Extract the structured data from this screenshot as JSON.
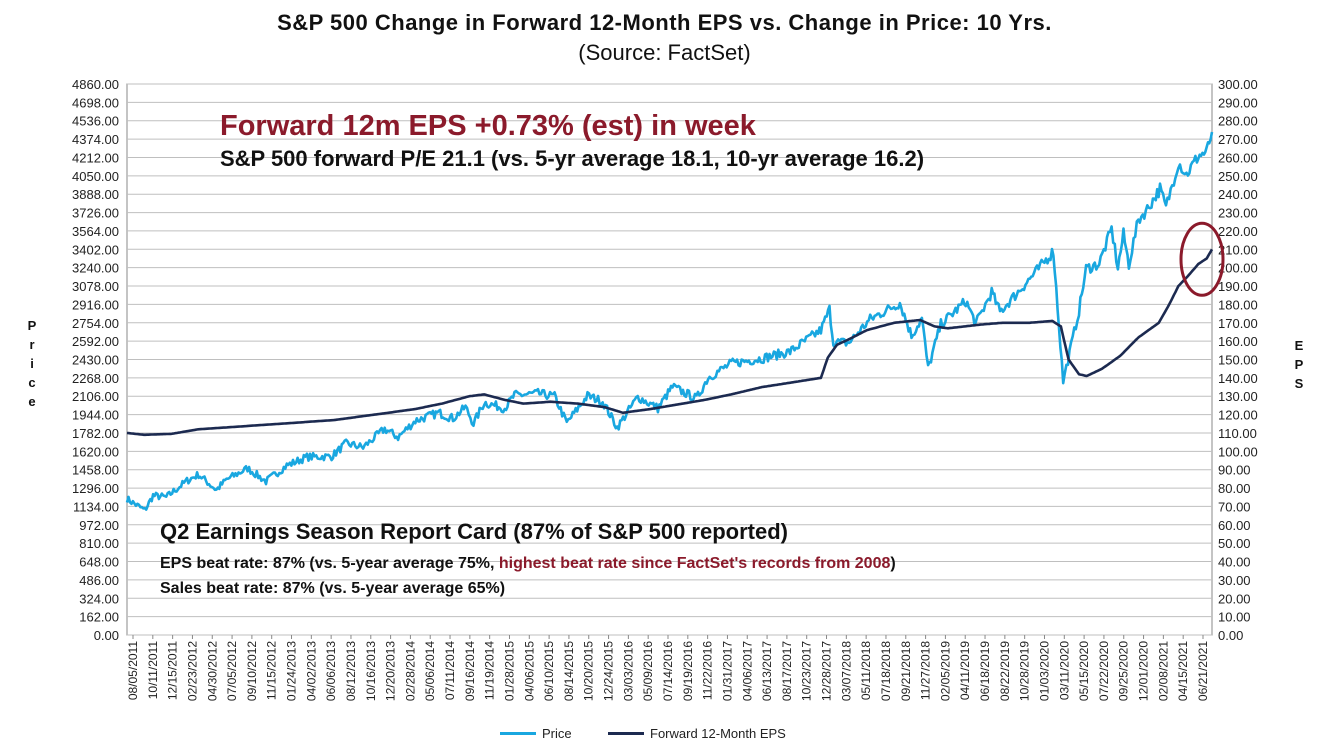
{
  "chart_data": {
    "type": "line",
    "title": "S&P 500 Change in Forward 12-Month EPS vs. Change in Price: 10 Yrs.",
    "subtitle": "(Source: FactSet)",
    "y_left_label": "Price",
    "y_right_label": "EPS",
    "y_left_range": [
      0,
      4860
    ],
    "y_right_range": [
      0,
      300
    ],
    "y_left_ticks": [
      "4860.00",
      "4698.00",
      "4536.00",
      "4374.00",
      "4212.00",
      "4050.00",
      "3888.00",
      "3726.00",
      "3564.00",
      "3402.00",
      "3240.00",
      "3078.00",
      "2916.00",
      "2754.00",
      "2592.00",
      "2430.00",
      "2268.00",
      "2106.00",
      "1944.00",
      "1782.00",
      "1620.00",
      "1458.00",
      "1296.00",
      "1134.00",
      "972.00",
      "810.00",
      "648.00",
      "486.00",
      "324.00",
      "162.00",
      "0.00"
    ],
    "y_right_ticks": [
      "300.00",
      "290.00",
      "280.00",
      "270.00",
      "260.00",
      "250.00",
      "240.00",
      "230.00",
      "220.00",
      "210.00",
      "200.00",
      "190.00",
      "180.00",
      "170.00",
      "160.00",
      "150.00",
      "140.00",
      "130.00",
      "120.00",
      "110.00",
      "100.00",
      "90.00",
      "80.00",
      "70.00",
      "60.00",
      "50.00",
      "40.00",
      "30.00",
      "20.00",
      "10.00",
      "0.00"
    ],
    "x_tick_labels": [
      "08/05/2011",
      "10/11/2011",
      "12/15/2011",
      "02/23/2012",
      "04/30/2012",
      "07/05/2012",
      "09/10/2012",
      "11/15/2012",
      "01/24/2013",
      "04/02/2013",
      "06/06/2013",
      "08/12/2013",
      "10/16/2013",
      "12/20/2013",
      "02/28/2014",
      "05/06/2014",
      "07/11/2014",
      "09/16/2014",
      "11/19/2014",
      "01/28/2015",
      "04/06/2015",
      "06/10/2015",
      "08/14/2015",
      "10/20/2015",
      "12/24/2015",
      "03/03/2016",
      "05/09/2016",
      "07/14/2016",
      "09/19/2016",
      "11/22/2016",
      "01/31/2017",
      "04/06/2017",
      "06/13/2017",
      "08/17/2017",
      "10/23/2017",
      "12/28/2017",
      "03/07/2018",
      "05/11/2018",
      "07/18/2018",
      "09/21/2018",
      "11/27/2018",
      "02/05/2019",
      "04/11/2019",
      "06/18/2019",
      "08/22/2019",
      "10/28/2019",
      "01/03/2020",
      "03/11/2020",
      "05/15/2020",
      "07/22/2020",
      "09/25/2020",
      "12/01/2020",
      "02/08/2021",
      "04/15/2021",
      "06/21/2021"
    ],
    "x_start": "2011-08-05",
    "x_end": "2021-08-06",
    "series": [
      {
        "name": "Price",
        "axis": "left",
        "color": "#19a7e0",
        "points": [
          [
            "2011-08-05",
            1200
          ],
          [
            "2011-10-04",
            1100
          ],
          [
            "2011-11-01",
            1230
          ],
          [
            "2011-12-15",
            1215
          ],
          [
            "2012-02-23",
            1360
          ],
          [
            "2012-04-02",
            1415
          ],
          [
            "2012-06-01",
            1280
          ],
          [
            "2012-07-05",
            1370
          ],
          [
            "2012-09-14",
            1470
          ],
          [
            "2012-11-15",
            1355
          ],
          [
            "2013-01-24",
            1495
          ],
          [
            "2013-04-02",
            1570
          ],
          [
            "2013-06-24",
            1575
          ],
          [
            "2013-08-12",
            1690
          ],
          [
            "2013-10-08",
            1655
          ],
          [
            "2013-12-20",
            1818
          ],
          [
            "2014-02-03",
            1745
          ],
          [
            "2014-04-02",
            1890
          ],
          [
            "2014-06-20",
            1960
          ],
          [
            "2014-08-07",
            1910
          ],
          [
            "2014-09-18",
            2010
          ],
          [
            "2014-10-15",
            1865
          ],
          [
            "2014-11-20",
            2050
          ],
          [
            "2015-01-28",
            2000
          ],
          [
            "2015-03-02",
            2115
          ],
          [
            "2015-05-20",
            2130
          ],
          [
            "2015-07-15",
            2105
          ],
          [
            "2015-08-25",
            1870
          ],
          [
            "2015-11-03",
            2110
          ],
          [
            "2015-12-24",
            2060
          ],
          [
            "2016-02-11",
            1830
          ],
          [
            "2016-04-20",
            2100
          ],
          [
            "2016-06-27",
            2000
          ],
          [
            "2016-08-15",
            2190
          ],
          [
            "2016-11-04",
            2085
          ],
          [
            "2016-12-13",
            2270
          ],
          [
            "2017-03-01",
            2395
          ],
          [
            "2017-06-13",
            2440
          ],
          [
            "2017-09-15",
            2500
          ],
          [
            "2017-12-28",
            2690
          ],
          [
            "2018-01-26",
            2872
          ],
          [
            "2018-02-08",
            2580
          ],
          [
            "2018-04-02",
            2580
          ],
          [
            "2018-06-12",
            2785
          ],
          [
            "2018-09-20",
            2930
          ],
          [
            "2018-10-29",
            2640
          ],
          [
            "2018-12-03",
            2790
          ],
          [
            "2018-12-24",
            2350
          ],
          [
            "2019-02-05",
            2740
          ],
          [
            "2019-04-30",
            2945
          ],
          [
            "2019-06-03",
            2745
          ],
          [
            "2019-07-26",
            3025
          ],
          [
            "2019-08-23",
            2850
          ],
          [
            "2019-10-28",
            3040
          ],
          [
            "2019-12-31",
            3230
          ],
          [
            "2020-02-19",
            3386
          ],
          [
            "2020-03-23",
            2237
          ],
          [
            "2020-05-15",
            2860
          ],
          [
            "2020-06-08",
            3230
          ],
          [
            "2020-07-22",
            3275
          ],
          [
            "2020-09-02",
            3580
          ],
          [
            "2020-09-23",
            3240
          ],
          [
            "2020-10-12",
            3535
          ],
          [
            "2020-10-30",
            3270
          ],
          [
            "2020-12-01",
            3660
          ],
          [
            "2020-12-31",
            3756
          ],
          [
            "2021-02-12",
            3935
          ],
          [
            "2021-03-04",
            3770
          ],
          [
            "2021-04-15",
            4170
          ],
          [
            "2021-05-12",
            4060
          ],
          [
            "2021-06-21",
            4225
          ],
          [
            "2021-07-19",
            4260
          ],
          [
            "2021-08-06",
            4437
          ]
        ]
      },
      {
        "name": "Forward 12-Month EPS",
        "axis": "right",
        "color": "#1c2a50",
        "points": [
          [
            "2011-08-05",
            110
          ],
          [
            "2011-10-01",
            109
          ],
          [
            "2012-01-01",
            109.5
          ],
          [
            "2012-04-01",
            112
          ],
          [
            "2012-07-05",
            113
          ],
          [
            "2012-10-01",
            114
          ],
          [
            "2013-01-01",
            115
          ],
          [
            "2013-04-01",
            116
          ],
          [
            "2013-07-01",
            117
          ],
          [
            "2013-10-01",
            119
          ],
          [
            "2014-01-01",
            121
          ],
          [
            "2014-04-01",
            123
          ],
          [
            "2014-07-01",
            126
          ],
          [
            "2014-10-01",
            130
          ],
          [
            "2014-11-20",
            131
          ],
          [
            "2015-01-28",
            128
          ],
          [
            "2015-04-01",
            126
          ],
          [
            "2015-07-01",
            127
          ],
          [
            "2015-10-01",
            126
          ],
          [
            "2016-01-01",
            124
          ],
          [
            "2016-03-01",
            121
          ],
          [
            "2016-06-01",
            123
          ],
          [
            "2016-09-19",
            126
          ],
          [
            "2016-12-01",
            128
          ],
          [
            "2017-03-01",
            131
          ],
          [
            "2017-06-13",
            135
          ],
          [
            "2017-09-01",
            137
          ],
          [
            "2017-12-28",
            140
          ],
          [
            "2018-01-20",
            151
          ],
          [
            "2018-02-20",
            158
          ],
          [
            "2018-04-01",
            161
          ],
          [
            "2018-06-01",
            166
          ],
          [
            "2018-09-01",
            170
          ],
          [
            "2018-11-27",
            171.5
          ],
          [
            "2019-01-15",
            168
          ],
          [
            "2019-03-01",
            167
          ],
          [
            "2019-06-18",
            169
          ],
          [
            "2019-09-01",
            170
          ],
          [
            "2019-12-01",
            170
          ],
          [
            "2020-02-15",
            171
          ],
          [
            "2020-03-15",
            168
          ],
          [
            "2020-04-10",
            150
          ],
          [
            "2020-05-15",
            142
          ],
          [
            "2020-06-10",
            141
          ],
          [
            "2020-08-01",
            145
          ],
          [
            "2020-10-01",
            152
          ],
          [
            "2020-12-01",
            162
          ],
          [
            "2021-02-08",
            170
          ],
          [
            "2021-03-15",
            180
          ],
          [
            "2021-04-15",
            190
          ],
          [
            "2021-05-20",
            196
          ],
          [
            "2021-06-21",
            202
          ],
          [
            "2021-07-19",
            205
          ],
          [
            "2021-08-06",
            210
          ]
        ]
      }
    ]
  },
  "annotations": {
    "headline": "Forward 12m EPS +0.73% (est) in week",
    "pe_note": "S&P 500 forward P/E 21.1 (vs. 5-yr average 18.1, 10-yr average 16.2)",
    "report_card_title": "Q2 Earnings Season Report Card (87% of S&P 500 reported)",
    "eps_beat_prefix": "EPS beat rate: 87% (vs. 5-year average 75%, ",
    "eps_beat_highlight": "highest beat rate since FactSet's records from 2008",
    "eps_beat_suffix": ")",
    "sales_beat": "Sales beat rate: 87% (vs. 5-year average 65%)"
  },
  "colors": {
    "price": "#19a7e0",
    "eps": "#1c2a50",
    "highlight": "#8b1a2b",
    "grid": "#bfbfbf"
  }
}
